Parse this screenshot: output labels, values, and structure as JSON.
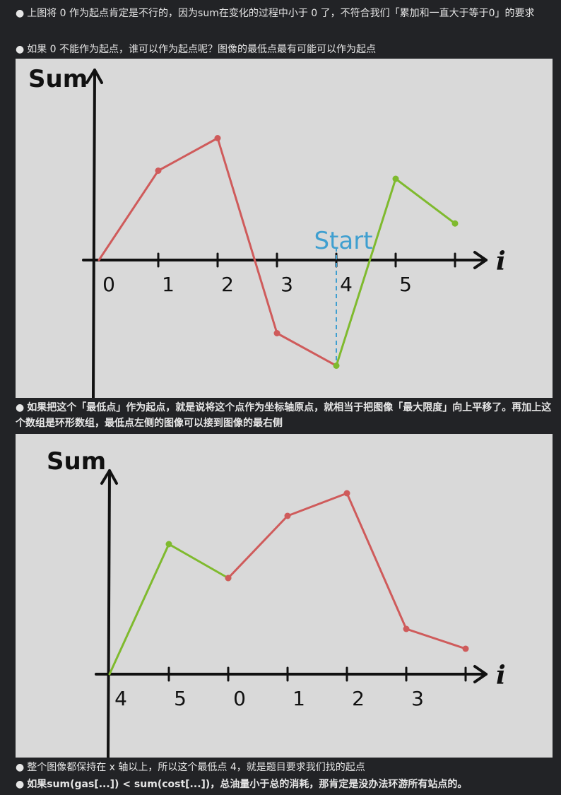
{
  "paragraphs": {
    "p1": "上图将 0 作为起点肯定是不行的，因为sum在变化的过程中小于 0 了，不符合我们「累加和一直大于等于0」的要求",
    "p2": "如果 0 不能作为起点，谁可以作为起点呢？图像的最低点最有可能可以作为起点",
    "p3": "如果把这个「最低点」作为起点，就是说将这个点作为坐标轴原点，就相当于把图像「最大限度」向上平移了。再加上这个数组是环形数组，最低点左侧的图像可以接到图像的最右侧",
    "p4": "整个图像都保持在 x 轴以上，所以这个最低点 4，就是题目要求我们找的起点",
    "p5": "如果sum(gas[...]) < sum(cost[...])，总油量小于总的消耗，那肯定是没办法环游所有站点的。"
  },
  "bullet": "●",
  "colors": {
    "red": "#cf5b5b",
    "green": "#7fba2e",
    "blue": "#3f9fd0",
    "axis": "#111111",
    "paper": "#d9d9d9"
  },
  "chart_data": [
    {
      "type": "line",
      "ylabel": "Sum",
      "xlabel": "i",
      "x": [
        "0",
        "1",
        "2",
        "3",
        "4",
        "5",
        ""
      ],
      "annotation": "Start",
      "annotation_at": "4",
      "series": [
        {
          "color": "red",
          "points": [
            [
              0,
              0
            ],
            [
              1,
              1.1
            ],
            [
              2,
              1.5
            ],
            [
              3,
              -0.9
            ],
            [
              4,
              -1.3
            ]
          ]
        },
        {
          "color": "green",
          "points": [
            [
              4,
              -1.3
            ],
            [
              5,
              1.0
            ],
            [
              6,
              0.45
            ]
          ]
        }
      ]
    },
    {
      "type": "line",
      "ylabel": "Sum",
      "xlabel": "i",
      "x": [
        "4",
        "5",
        "0",
        "1",
        "2",
        "3",
        ""
      ],
      "series": [
        {
          "color": "green",
          "points": [
            [
              0,
              0
            ],
            [
              1,
              2.3
            ],
            [
              2,
              1.7
            ]
          ]
        },
        {
          "color": "red",
          "points": [
            [
              2,
              1.7
            ],
            [
              3,
              2.8
            ],
            [
              4,
              3.2
            ],
            [
              5,
              0.8
            ],
            [
              6,
              0.45
            ]
          ]
        }
      ]
    }
  ]
}
